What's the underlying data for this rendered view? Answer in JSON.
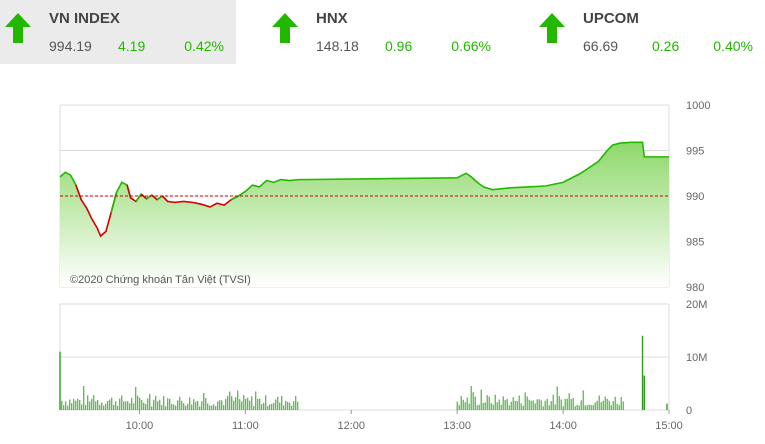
{
  "indices": [
    {
      "name": "VN INDEX",
      "value": "994.19",
      "change": "4.19",
      "percent": "0.42%",
      "icon": "up-arrow-icon"
    },
    {
      "name": "HNX",
      "value": "148.18",
      "change": "0.96",
      "percent": "0.66%",
      "icon": "up-arrow-icon"
    },
    {
      "name": "UPCOM",
      "value": "66.69",
      "change": "0.26",
      "percent": "0.40%",
      "icon": "up-arrow-icon"
    }
  ],
  "colors": {
    "up": "#22b800",
    "down": "#d40000",
    "ref": "#cc0000",
    "fill": "#a8e68c",
    "bar": "#2e9e1e"
  },
  "chart_data": [
    {
      "type": "area",
      "title": "",
      "copyright": "©2020 Chứng khoán Tân Việt (TVSI)",
      "reference": 990,
      "ylim": [
        980,
        1000
      ],
      "yticks": [
        "1000",
        "995",
        "990",
        "985",
        "980"
      ],
      "x_range": [
        "09:15",
        "15:00"
      ],
      "points": [
        [
          "09:15",
          992.1
        ],
        [
          "09:18",
          992.6
        ],
        [
          "09:21",
          992.3
        ],
        [
          "09:24",
          991.2
        ],
        [
          "09:27",
          989.6
        ],
        [
          "09:30",
          988.7
        ],
        [
          "09:33",
          987.5
        ],
        [
          "09:36",
          986.5
        ],
        [
          "09:38",
          985.6
        ],
        [
          "09:41",
          986.1
        ],
        [
          "09:44",
          988.2
        ],
        [
          "09:47",
          990.4
        ],
        [
          "09:50",
          991.5
        ],
        [
          "09:53",
          991.2
        ],
        [
          "09:55",
          989.8
        ],
        [
          "09:58",
          989.4
        ],
        [
          "10:01",
          990.2
        ],
        [
          "10:04",
          989.7
        ],
        [
          "10:07",
          990.1
        ],
        [
          "10:10",
          989.6
        ],
        [
          "10:13",
          990.0
        ],
        [
          "10:16",
          989.4
        ],
        [
          "10:20",
          989.3
        ],
        [
          "10:25",
          989.4
        ],
        [
          "10:30",
          989.3
        ],
        [
          "10:35",
          989.1
        ],
        [
          "10:40",
          988.8
        ],
        [
          "10:44",
          989.2
        ],
        [
          "10:48",
          989.0
        ],
        [
          "10:52",
          989.6
        ],
        [
          "10:56",
          990.0
        ],
        [
          "11:00",
          990.5
        ],
        [
          "11:04",
          991.2
        ],
        [
          "11:08",
          991.0
        ],
        [
          "11:12",
          991.7
        ],
        [
          "11:16",
          991.5
        ],
        [
          "11:20",
          991.8
        ],
        [
          "11:25",
          991.7
        ],
        [
          "11:30",
          991.8
        ],
        [
          "13:00",
          992.0
        ],
        [
          "13:05",
          992.5
        ],
        [
          "13:08",
          992.1
        ],
        [
          "13:12",
          991.4
        ],
        [
          "13:15",
          991.0
        ],
        [
          "13:20",
          990.7
        ],
        [
          "13:30",
          990.9
        ],
        [
          "13:40",
          991.0
        ],
        [
          "13:50",
          991.1
        ],
        [
          "14:00",
          991.5
        ],
        [
          "14:10",
          992.5
        ],
        [
          "14:20",
          993.8
        ],
        [
          "14:25",
          995.0
        ],
        [
          "14:28",
          995.6
        ],
        [
          "14:32",
          995.8
        ],
        [
          "14:38",
          995.9
        ],
        [
          "14:45",
          995.9
        ],
        [
          "14:46",
          994.3
        ],
        [
          "15:00",
          994.3
        ]
      ]
    },
    {
      "type": "bar",
      "title": "",
      "ylim": [
        0,
        20
      ],
      "yticks": [
        "20M",
        "10M",
        "0"
      ],
      "xticks": [
        "10:00",
        "11:00",
        "12:00",
        "13:00",
        "14:00",
        "15:00"
      ],
      "spikes": [
        {
          "time": "09:15",
          "value": 11
        },
        {
          "time": "14:45",
          "value": 14
        },
        {
          "time": "14:46",
          "value": 6.5
        },
        {
          "time": "15:00",
          "value": 1.2
        }
      ],
      "sessions": [
        {
          "start": "09:16",
          "end": "11:30",
          "level": 2.2
        },
        {
          "start": "13:00",
          "end": "14:35",
          "level": 2.3
        }
      ]
    }
  ]
}
